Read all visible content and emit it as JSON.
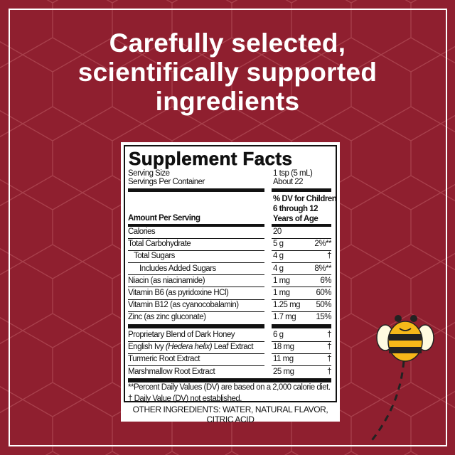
{
  "headline": [
    "Carefully selected,",
    "scientifically supported",
    "ingredients"
  ],
  "colors": {
    "background": "#8f1f2f",
    "label_ink": "#111111"
  },
  "facts": {
    "title": "Supplement Facts",
    "serving_size_label": "Serving Size",
    "serving_size": "1 tsp (5 mL)",
    "servings_label": "Servings Per Container",
    "servings": "About 22",
    "dv_header": [
      "% DV for Children",
      "6 through 12",
      "Years of Age"
    ],
    "amount_header": "Amount Per Serving",
    "rows": [
      {
        "name": "Calories",
        "amount": "20",
        "dv": ""
      },
      {
        "name": "Total Carbohydrate",
        "amount": "5 g",
        "dv": "2%**"
      },
      {
        "name": "Total Sugars",
        "amount": "4 g",
        "dv": "†"
      },
      {
        "name": "Includes Added Sugars",
        "amount": "4 g",
        "dv": "8%**"
      },
      {
        "name": "Niacin (as niacinamide)",
        "amount": "1 mg",
        "dv": "6%"
      },
      {
        "name": "Vitamin B6 (as pyridoxine HCl)",
        "amount": "1 mg",
        "dv": "60%"
      },
      {
        "name": "Vitamin B12 (as cyanocobalamin)",
        "amount": "1.25 mg",
        "dv": "50%"
      },
      {
        "name": "Zinc (as zinc gluconate)",
        "amount": "1.7 mg",
        "dv": "15%"
      }
    ],
    "blend_rows": [
      {
        "name": "Proprietary Blend of Dark Honey",
        "amount": "6 g",
        "dv": "†"
      },
      {
        "name_pre": "English Ivy ",
        "name_italic": "(Hedera helix)",
        "name_post": " Leaf Extract",
        "amount": "18 mg",
        "dv": "†"
      },
      {
        "name": "Turmeric Root Extract",
        "amount": "11 mg",
        "dv": "†"
      },
      {
        "name": "Marshmallow Root Extract",
        "amount": "25 mg",
        "dv": "†"
      }
    ],
    "footnotes": [
      "**Percent Daily Values (DV) are based on a 2,000 calorie diet.",
      "† Daily Value (DV) not established."
    ],
    "other_ingredients": "OTHER INGREDIENTS: WATER, NATURAL FLAVOR, CITRIC ACID"
  },
  "icons": {
    "mascot": "bee-icon"
  }
}
